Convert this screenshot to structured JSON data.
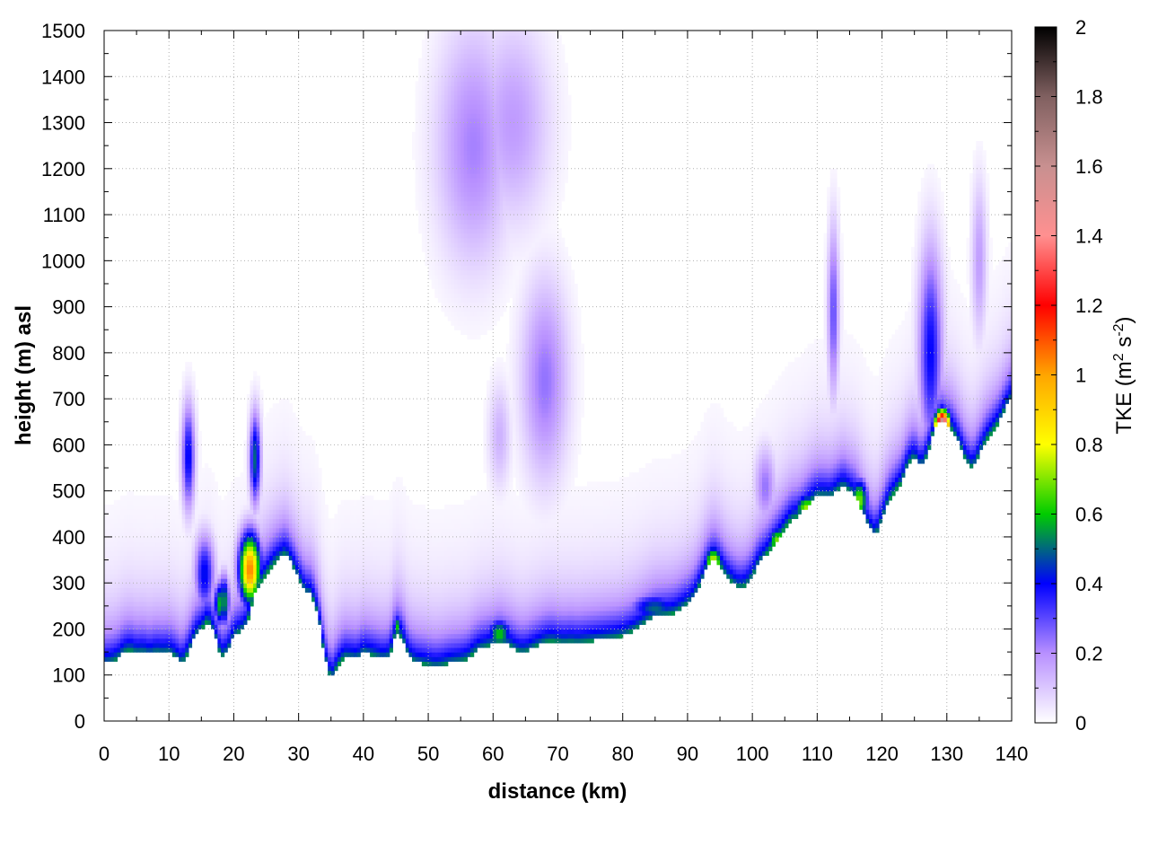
{
  "chart_data": {
    "type": "heatmap",
    "title": "",
    "xlabel": "distance (km)",
    "ylabel": "height (m) asl",
    "xlim": [
      0,
      140
    ],
    "ylim": [
      0,
      1500
    ],
    "x_ticks": [
      "0",
      "10",
      "20",
      "30",
      "40",
      "50",
      "60",
      "70",
      "80",
      "90",
      "100",
      "110",
      "120",
      "130",
      "140"
    ],
    "y_ticks": [
      "0",
      "100",
      "200",
      "300",
      "400",
      "500",
      "600",
      "700",
      "800",
      "900",
      "1000",
      "1100",
      "1200",
      "1300",
      "1400",
      "1500"
    ],
    "grid": true,
    "colorbar": {
      "label_main": "TKE (m",
      "label_sup1": "2",
      "label_mid": " s",
      "label_sup2": "-2",
      "label_end": ")",
      "range": [
        0,
        2
      ],
      "ticks": [
        "0",
        "0.2",
        "0.4",
        "0.6",
        "0.8",
        "1",
        "1.2",
        "1.4",
        "1.6",
        "1.8",
        "2"
      ],
      "stops": [
        {
          "value": 0.0,
          "color": "#ffffff"
        },
        {
          "value": 0.2,
          "color": "#b890ff"
        },
        {
          "value": 0.4,
          "color": "#0000ff"
        },
        {
          "value": 0.6,
          "color": "#00cc00"
        },
        {
          "value": 0.8,
          "color": "#ffff00"
        },
        {
          "value": 1.0,
          "color": "#ffa500"
        },
        {
          "value": 1.2,
          "color": "#ff0000"
        },
        {
          "value": 1.4,
          "color": "#ff9090"
        },
        {
          "value": 1.6,
          "color": "#c89090"
        },
        {
          "value": 1.8,
          "color": "#806060"
        },
        {
          "value": 2.0,
          "color": "#000000"
        }
      ]
    },
    "terrain": [
      [
        0,
        125
      ],
      [
        1,
        128
      ],
      [
        2,
        135
      ],
      [
        3,
        150
      ],
      [
        4,
        155
      ],
      [
        5,
        148
      ],
      [
        6,
        150
      ],
      [
        7,
        145
      ],
      [
        8,
        150
      ],
      [
        9,
        148
      ],
      [
        10,
        150
      ],
      [
        11,
        140
      ],
      [
        12,
        125
      ],
      [
        13,
        150
      ],
      [
        14,
        185
      ],
      [
        15,
        200
      ],
      [
        16,
        220
      ],
      [
        17,
        190
      ],
      [
        18,
        140
      ],
      [
        19,
        150
      ],
      [
        20,
        185
      ],
      [
        21,
        195
      ],
      [
        22,
        210
      ],
      [
        23,
        270
      ],
      [
        24,
        300
      ],
      [
        25,
        320
      ],
      [
        26,
        340
      ],
      [
        27,
        355
      ],
      [
        28,
        365
      ],
      [
        29,
        340
      ],
      [
        30,
        310
      ],
      [
        31,
        280
      ],
      [
        32,
        275
      ],
      [
        33,
        230
      ],
      [
        34,
        140
      ],
      [
        35,
        90
      ],
      [
        36,
        120
      ],
      [
        37,
        140
      ],
      [
        38,
        138
      ],
      [
        39,
        135
      ],
      [
        40,
        150
      ],
      [
        41,
        145
      ],
      [
        42,
        140
      ],
      [
        43,
        135
      ],
      [
        44,
        140
      ],
      [
        45,
        195
      ],
      [
        46,
        180
      ],
      [
        47,
        140
      ],
      [
        48,
        128
      ],
      [
        49,
        125
      ],
      [
        50,
        122
      ],
      [
        51,
        118
      ],
      [
        52,
        120
      ],
      [
        53,
        125
      ],
      [
        54,
        128
      ],
      [
        55,
        130
      ],
      [
        56,
        135
      ],
      [
        57,
        148
      ],
      [
        58,
        158
      ],
      [
        59,
        162
      ],
      [
        60,
        168
      ],
      [
        61,
        175
      ],
      [
        62,
        168
      ],
      [
        63,
        160
      ],
      [
        64,
        150
      ],
      [
        65,
        150
      ],
      [
        66,
        158
      ],
      [
        67,
        165
      ],
      [
        68,
        172
      ],
      [
        69,
        175
      ],
      [
        70,
        172
      ],
      [
        71,
        170
      ],
      [
        72,
        172
      ],
      [
        73,
        170
      ],
      [
        74,
        172
      ],
      [
        75,
        174
      ],
      [
        76,
        176
      ],
      [
        77,
        178
      ],
      [
        78,
        180
      ],
      [
        79,
        182
      ],
      [
        80,
        186
      ],
      [
        81,
        192
      ],
      [
        82,
        200
      ],
      [
        83,
        210
      ],
      [
        84,
        220
      ],
      [
        85,
        228
      ],
      [
        86,
        230
      ],
      [
        87,
        232
      ],
      [
        88,
        236
      ],
      [
        89,
        245
      ],
      [
        90,
        255
      ],
      [
        91,
        270
      ],
      [
        92,
        300
      ],
      [
        93,
        335
      ],
      [
        94,
        355
      ],
      [
        95,
        340
      ],
      [
        96,
        315
      ],
      [
        97,
        300
      ],
      [
        98,
        290
      ],
      [
        99,
        295
      ],
      [
        100,
        315
      ],
      [
        101,
        345
      ],
      [
        102,
        360
      ],
      [
        103,
        380
      ],
      [
        104,
        400
      ],
      [
        105,
        420
      ],
      [
        106,
        440
      ],
      [
        107,
        445
      ],
      [
        108,
        460
      ],
      [
        109,
        478
      ],
      [
        110,
        490
      ],
      [
        111,
        490
      ],
      [
        112,
        488
      ],
      [
        113,
        500
      ],
      [
        114,
        512
      ],
      [
        115,
        500
      ],
      [
        116,
        488
      ],
      [
        117,
        455
      ],
      [
        118,
        420
      ],
      [
        119,
        402
      ],
      [
        120,
        440
      ],
      [
        121,
        480
      ],
      [
        122,
        500
      ],
      [
        123,
        520
      ],
      [
        124,
        560
      ],
      [
        125,
        575
      ],
      [
        126,
        550
      ],
      [
        127,
        580
      ],
      [
        128,
        630
      ],
      [
        129,
        655
      ],
      [
        130,
        645
      ],
      [
        131,
        630
      ],
      [
        132,
        600
      ],
      [
        133,
        565
      ],
      [
        134,
        550
      ],
      [
        135,
        580
      ],
      [
        136,
        610
      ],
      [
        137,
        630
      ],
      [
        138,
        650
      ],
      [
        139,
        680
      ],
      [
        140,
        705
      ]
    ],
    "blobs": [
      {
        "x": 13,
        "y": 575,
        "sx": 0.7,
        "sy": 80,
        "v": 0.42
      },
      {
        "x": 23.3,
        "y": 570,
        "sx": 0.6,
        "sy": 70,
        "v": 0.5
      },
      {
        "x": 15.5,
        "y": 320,
        "sx": 1.1,
        "sy": 60,
        "v": 0.42
      },
      {
        "x": 18.5,
        "y": 260,
        "sx": 0.6,
        "sy": 40,
        "v": 0.58
      },
      {
        "x": 57,
        "y": 1250,
        "sx": 4,
        "sy": 180,
        "v": 0.22
      },
      {
        "x": 63,
        "y": 1300,
        "sx": 4,
        "sy": 150,
        "v": 0.18
      },
      {
        "x": 68,
        "y": 740,
        "sx": 2.5,
        "sy": 150,
        "v": 0.24
      },
      {
        "x": 61,
        "y": 620,
        "sx": 1.2,
        "sy": 80,
        "v": 0.14
      },
      {
        "x": 102,
        "y": 510,
        "sx": 1.2,
        "sy": 60,
        "v": 0.24
      },
      {
        "x": 112.5,
        "y": 890,
        "sx": 0.6,
        "sy": 130,
        "v": 0.3
      },
      {
        "x": 127.5,
        "y": 800,
        "sx": 1.3,
        "sy": 160,
        "v": 0.4
      },
      {
        "x": 135,
        "y": 1000,
        "sx": 0.8,
        "sy": 120,
        "v": 0.18
      }
    ],
    "hotspots": [
      {
        "x": 22.5,
        "y": 330,
        "sx": 1.2,
        "sy": 55,
        "v": 1.05
      },
      {
        "x": 17.8,
        "y": 255,
        "sx": 0.6,
        "sy": 35,
        "v": 0.58
      },
      {
        "x": 94,
        "y": 340,
        "sx": 1.0,
        "sy": 30,
        "v": 0.85
      },
      {
        "x": 104,
        "y": 390,
        "sx": 1.2,
        "sy": 25,
        "v": 0.72
      },
      {
        "x": 108.5,
        "y": 460,
        "sx": 1.5,
        "sy": 25,
        "v": 0.75
      },
      {
        "x": 116.5,
        "y": 480,
        "sx": 1.0,
        "sy": 35,
        "v": 0.7
      },
      {
        "x": 129.3,
        "y": 640,
        "sx": 0.8,
        "sy": 25,
        "v": 1.9
      },
      {
        "x": 128.2,
        "y": 600,
        "sx": 0.7,
        "sy": 30,
        "v": 0.9
      },
      {
        "x": 61,
        "y": 190,
        "sx": 1.5,
        "sy": 25,
        "v": 0.6
      },
      {
        "x": 85,
        "y": 245,
        "sx": 3.0,
        "sy": 25,
        "v": 0.5
      },
      {
        "x": 45.3,
        "y": 205,
        "sx": 0.5,
        "sy": 20,
        "v": 0.6
      }
    ]
  }
}
